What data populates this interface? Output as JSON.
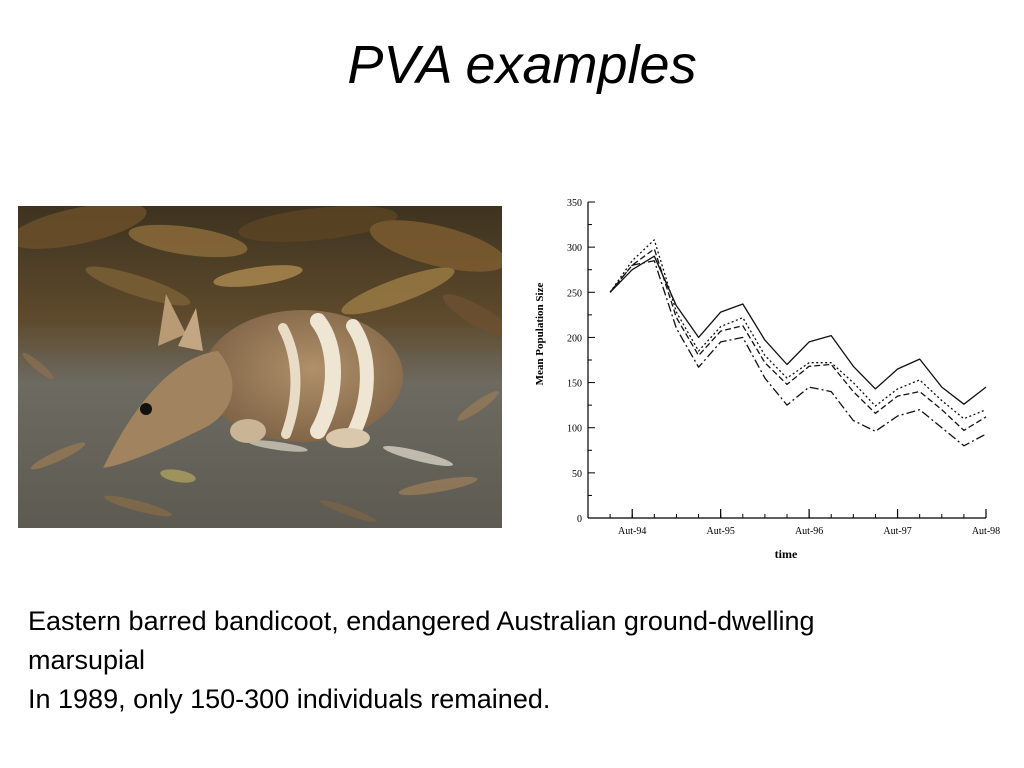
{
  "slide": {
    "title": "PVA examples",
    "caption_lines": [
      "Eastern barred bandicoot, endangered Australian ground-dwelling",
      "marsupial",
      "In 1989, only 150-300 individuals remained."
    ]
  },
  "photo": {
    "subject_icon": "bandicoot-photo",
    "colors": {
      "ground": "#6a665d",
      "foliage": "#4a3a22",
      "fur": "#a58660",
      "stripe": "#f1e8d8"
    }
  },
  "chart_data": {
    "type": "line",
    "title": "",
    "xlabel": "time",
    "ylabel": "Mean Population Size",
    "ylim": [
      0,
      350
    ],
    "yticks": [
      0,
      50,
      100,
      150,
      200,
      250,
      300,
      350
    ],
    "xlim": [
      0,
      18
    ],
    "xticks": [
      {
        "x": 2,
        "label": "Aut-94"
      },
      {
        "x": 6,
        "label": "Aut-95"
      },
      {
        "x": 10,
        "label": "Aut-96"
      },
      {
        "x": 14,
        "label": "Aut-97"
      },
      {
        "x": 18,
        "label": "Aut-98"
      }
    ],
    "grid": false,
    "legend": "none",
    "x": [
      1,
      2,
      3,
      4,
      5,
      6,
      7,
      8,
      9,
      10,
      11,
      12,
      13,
      14,
      15,
      16,
      17,
      18
    ],
    "series": [
      {
        "style": "solid",
        "values": [
          250,
          275,
          290,
          235,
          200,
          228,
          237,
          197,
          170,
          195,
          202,
          168,
          143,
          165,
          176,
          145,
          126,
          145
        ]
      },
      {
        "style": "dotted",
        "values": [
          250,
          285,
          308,
          228,
          185,
          212,
          222,
          180,
          155,
          172,
          172,
          150,
          124,
          143,
          153,
          130,
          110,
          120
        ]
      },
      {
        "style": "dashed",
        "values": [
          250,
          280,
          298,
          222,
          180,
          207,
          213,
          172,
          148,
          168,
          170,
          140,
          116,
          135,
          140,
          120,
          97,
          112
        ]
      },
      {
        "style": "dashdot",
        "values": [
          250,
          280,
          285,
          210,
          167,
          195,
          200,
          155,
          125,
          145,
          140,
          108,
          96,
          113,
          120,
          100,
          80,
          93
        ]
      }
    ]
  }
}
